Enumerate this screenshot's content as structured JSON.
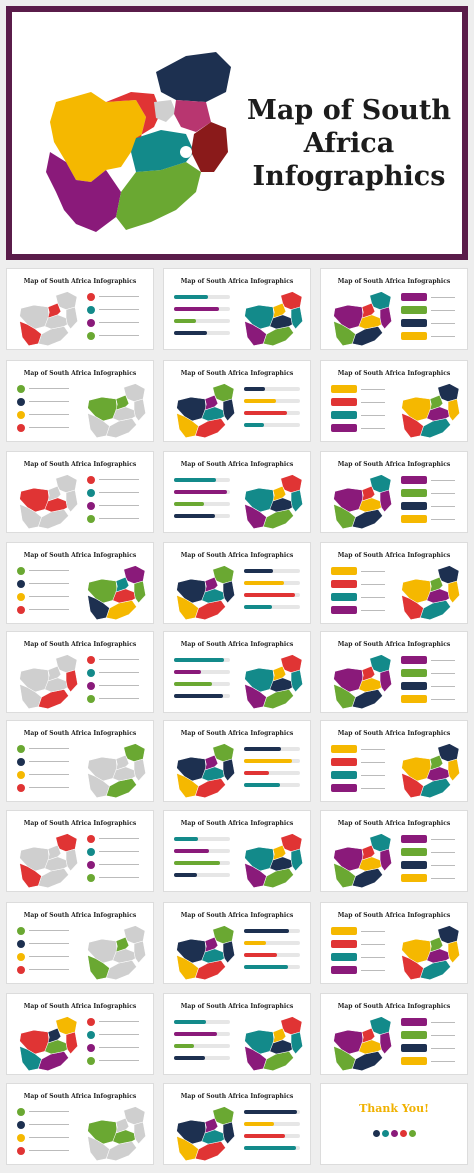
{
  "hero": {
    "title_line1": "Map of South",
    "title_line2": "Africa",
    "title_line3": "Infographics"
  },
  "thumbnail_title": "Map of South Africa Infographics",
  "thank_you": {
    "title": "Thank You!"
  },
  "colors": {
    "border": "#5a1c4a",
    "yellow": "#f5b800",
    "red": "#e03434",
    "teal": "#138a8a",
    "purple": "#8a1a7a",
    "green": "#6aa832",
    "navy": "#1d3050",
    "maroon": "#8a1a1a",
    "gray": "#cfcfcf"
  }
}
